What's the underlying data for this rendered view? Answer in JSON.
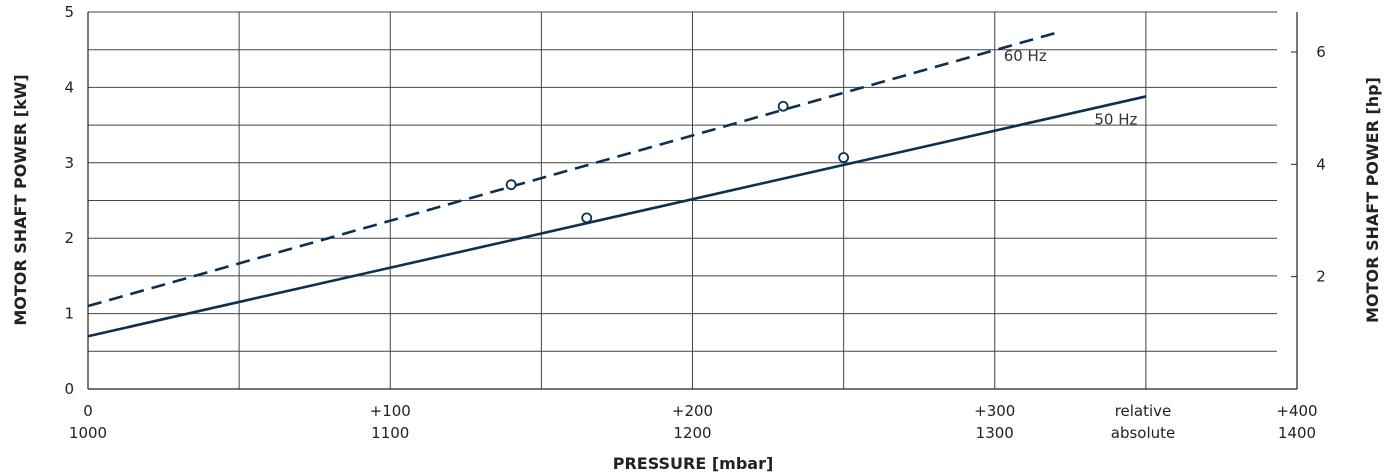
{
  "chart_data": {
    "type": "line",
    "xlabel": "PRESSURE  [mbar]",
    "ylabel_left": "MOTOR SHAFT POWER  [kW]",
    "ylabel_right": "MOTOR SHAFT POWER  [hp]",
    "xlim": [
      0,
      400
    ],
    "ylim": [
      0,
      5
    ],
    "grid": true,
    "x_ticks": [
      {
        "x": 0,
        "relative": "0",
        "absolute": "1000"
      },
      {
        "x": 100,
        "relative": "+100",
        "absolute": "1100"
      },
      {
        "x": 200,
        "relative": "+200",
        "absolute": "1200"
      },
      {
        "x": 300,
        "relative": "+300",
        "absolute": "1300"
      },
      {
        "x": 400,
        "relative": "+400",
        "absolute": "1400"
      }
    ],
    "x_scale_labels": {
      "relative": "relative",
      "absolute": "absolute"
    },
    "y_ticks_left": [
      "0",
      "1",
      "2",
      "3",
      "4",
      "5"
    ],
    "y_ticks_right": [
      {
        "value_kw": 1.49,
        "label": "2"
      },
      {
        "value_kw": 2.98,
        "label": "4"
      },
      {
        "value_kw": 4.47,
        "label": "6"
      }
    ],
    "series": [
      {
        "name": "50 Hz",
        "style": "solid",
        "color": "#0d2f52",
        "line": [
          [
            0,
            0.7
          ],
          [
            350,
            3.88
          ]
        ],
        "markers": [
          [
            165,
            2.27
          ],
          [
            250,
            3.07
          ]
        ]
      },
      {
        "name": "60 Hz",
        "style": "dashed",
        "color": "#0d2f52",
        "line": [
          [
            0,
            1.1
          ],
          [
            320,
            4.72
          ]
        ],
        "markers": [
          [
            140,
            2.71
          ],
          [
            230,
            3.75
          ]
        ]
      }
    ]
  }
}
